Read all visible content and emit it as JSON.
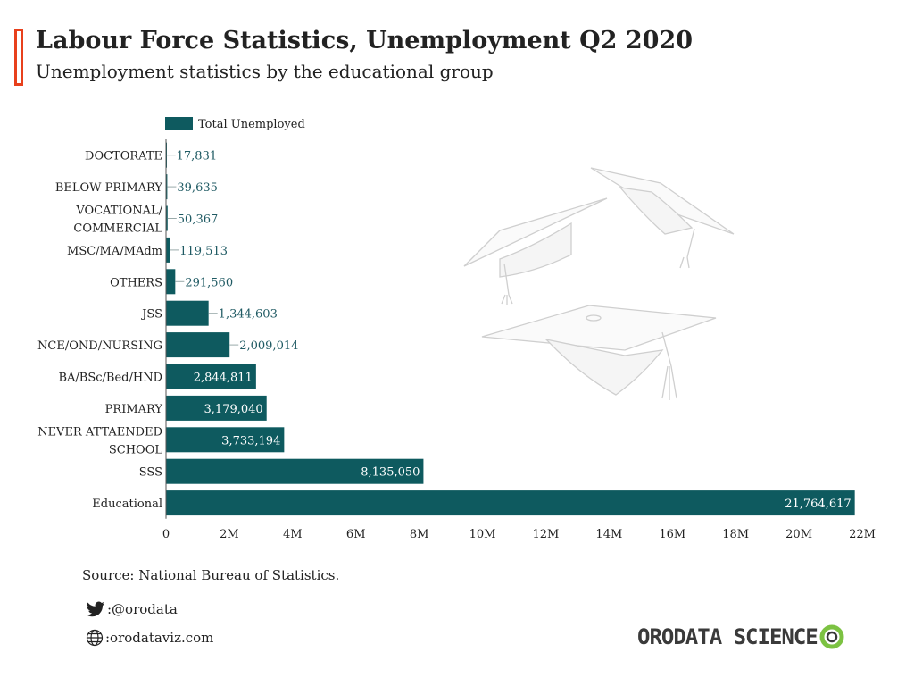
{
  "header": {
    "title": "Labour Force Statistics, Unemployment Q2 2020",
    "subtitle": "Unemployment statistics by the educational group"
  },
  "footer": {
    "source": "Source: National Bureau of Statistics.",
    "twitter": ":@orodata",
    "website": ":orodataviz.com",
    "logo": "ORODATA SCIENCE"
  },
  "colors": {
    "bar": "#0e5a5f",
    "accent": "#e8401c",
    "label_small": "#1f5a63"
  },
  "chart_data": {
    "type": "bar",
    "orientation": "horizontal",
    "legend": [
      "Total Unemployed"
    ],
    "legend_placement": "top-left",
    "categories": [
      [
        "DOCTORATE"
      ],
      [
        "BELOW PRIMARY"
      ],
      [
        "VOCATIONAL/",
        "COMMERCIAL"
      ],
      [
        "MSC/MA/MAdm"
      ],
      [
        "OTHERS"
      ],
      [
        "JSS"
      ],
      [
        "NCE/OND/NURSING"
      ],
      [
        "BA/BSc/Bed/HND"
      ],
      [
        "PRIMARY"
      ],
      [
        "NEVER ATTAENDED",
        "SCHOOL"
      ],
      [
        "SSS"
      ],
      [
        "Educational"
      ]
    ],
    "values": [
      17831,
      39635,
      50367,
      119513,
      291560,
      1344603,
      2009014,
      2844811,
      3179040,
      3733194,
      8135050,
      21764617
    ],
    "value_labels": [
      "17,831",
      "39,635",
      "50,367",
      "119,513",
      "291,560",
      "1,344,603",
      "2,009,014",
      "2,844,811",
      "3,179,040",
      "3,733,194",
      "8,135,050",
      "21,764,617"
    ],
    "series": [
      {
        "name": "Total Unemployed"
      }
    ],
    "xlim": [
      0,
      22000000
    ],
    "xticks": [
      0,
      2000000,
      4000000,
      6000000,
      8000000,
      10000000,
      12000000,
      14000000,
      16000000,
      18000000,
      20000000,
      22000000
    ],
    "xtick_labels": [
      "0",
      "2M",
      "4M",
      "6M",
      "8M",
      "10M",
      "12M",
      "14M",
      "16M",
      "18M",
      "20M",
      "22M"
    ],
    "grid": false
  }
}
